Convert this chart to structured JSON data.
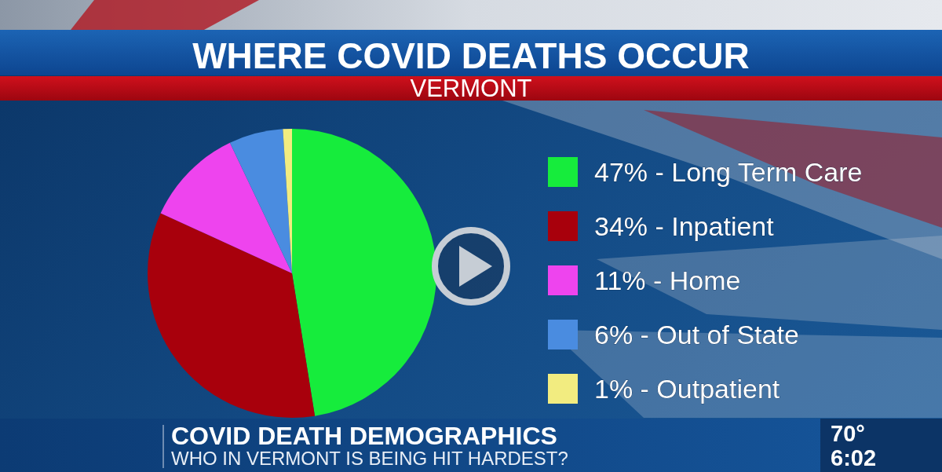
{
  "chart_data": {
    "type": "pie",
    "title": "WHERE COVID DEATHS OCCUR",
    "subtitle": "VERMONT",
    "categories": [
      "Long Term Care",
      "Inpatient",
      "Home",
      "Out of State",
      "Outpatient"
    ],
    "values": [
      47,
      34,
      11,
      6,
      1
    ],
    "value_labels": [
      "47%",
      "34%",
      "11%",
      "6%",
      "1%"
    ],
    "colors": [
      "#16ec3c",
      "#a8000c",
      "#ee44ee",
      "#4a8ce0",
      "#f2ec80"
    ],
    "legend": "right",
    "annotations": [
      "COVID DEATH DEMOGRAPHICS",
      "WHO IN VERMONT IS BEING HIT HARDEST?",
      "70°",
      "6:02"
    ]
  }
}
